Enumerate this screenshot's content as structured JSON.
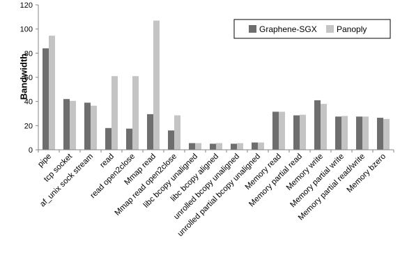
{
  "chart_data": {
    "type": "bar",
    "title": "",
    "xlabel": "",
    "ylabel": "Bandwidth",
    "ylim": [
      0,
      120
    ],
    "yticks": [
      0,
      20,
      40,
      60,
      80,
      100,
      120
    ],
    "grid": false,
    "legend_position": "top-right",
    "categories": [
      "pipe",
      "tcp socket",
      "af_unix sock stream",
      "read",
      "read open2close",
      "Mmap read",
      "Mmap read open2close",
      "libc bcopy unaligned",
      "libc bcopy aligned",
      "unrolled bcopy unaligned",
      "unrolled partial bcopy unaligned",
      "Memory read",
      "Memory partial read",
      "Memory write",
      "Memory partial write",
      "Memory partial read/write",
      "Memory bzero"
    ],
    "series": [
      {
        "name": "Graphene-SGX",
        "color": "#6e6e6e",
        "values": [
          84,
          42,
          39,
          18,
          17.5,
          29.5,
          16,
          5.5,
          5,
          5,
          6,
          31.5,
          28.5,
          41,
          27.5,
          27.5,
          26.5
        ]
      },
      {
        "name": "Panoply",
        "color": "#c4c4c4",
        "values": [
          94.5,
          40.5,
          36.5,
          61,
          61,
          107,
          28.5,
          5.5,
          5.5,
          5.5,
          6,
          31.5,
          29,
          38,
          28,
          27.5,
          25.5
        ]
      }
    ]
  }
}
